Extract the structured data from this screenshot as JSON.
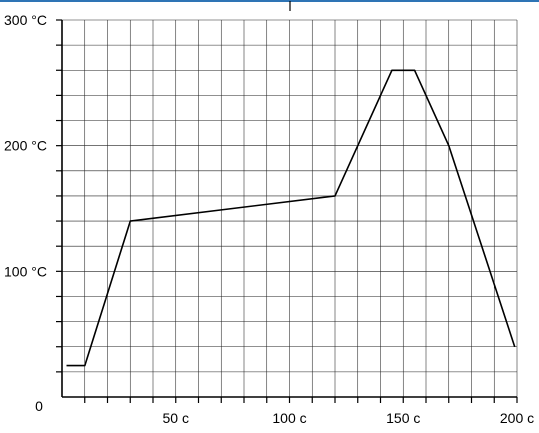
{
  "chart_data": {
    "type": "line",
    "title": "",
    "xlabel": "",
    "ylabel": "",
    "xlim": [
      0,
      200
    ],
    "ylim": [
      0,
      300
    ],
    "grid": true,
    "x_minor_step": 10,
    "y_minor_step": 20,
    "x_ticks": [
      {
        "value": 50,
        "label": "50 c"
      },
      {
        "value": 100,
        "label": "100 c"
      },
      {
        "value": 150,
        "label": "150 c"
      },
      {
        "value": 200,
        "label": "200 c"
      }
    ],
    "y_ticks": [
      {
        "value": 100,
        "label": "100 °C"
      },
      {
        "value": 200,
        "label": "200 °C"
      },
      {
        "value": 300,
        "label": "300 °C"
      }
    ],
    "origin_label": "0",
    "series": [
      {
        "points": [
          {
            "x": 2,
            "y": 25
          },
          {
            "x": 10,
            "y": 25
          },
          {
            "x": 30,
            "y": 140
          },
          {
            "x": 120,
            "y": 160
          },
          {
            "x": 145,
            "y": 260
          },
          {
            "x": 155,
            "y": 260
          },
          {
            "x": 170,
            "y": 200
          },
          {
            "x": 199,
            "y": 40
          }
        ],
        "color": "#000000"
      }
    ]
  }
}
